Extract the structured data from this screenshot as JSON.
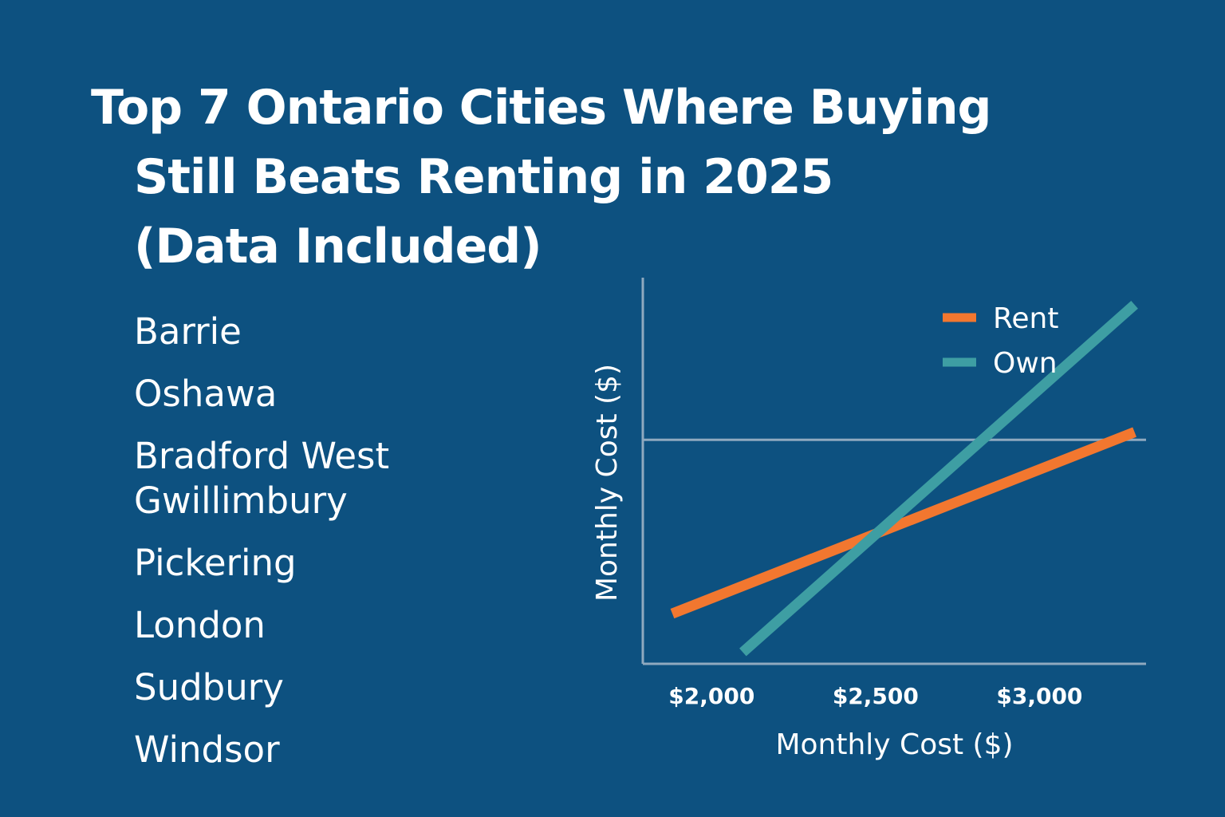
{
  "title": {
    "line1": "Top 7 Ontario Cities Where Buying",
    "line2": "Still Beats Renting in 2025",
    "line3": "(Data Included)"
  },
  "cities": [
    "Barrie",
    "Oshawa",
    "Bradford West Gwillimbury",
    "Pickering",
    "London",
    "Sudbury",
    "Windsor"
  ],
  "colors": {
    "background": "#0d5180",
    "rent": "#f2772f",
    "own": "#3e9ea3",
    "axis": "#8fa9bf"
  },
  "chart_data": {
    "type": "line",
    "xlabel": "Monthly Cost ($)",
    "ylabel": "Monthly Cost ($)",
    "xlim": [
      1790,
      3325
    ],
    "ylim": [
      0,
      100
    ],
    "x_ticks": [
      {
        "value": 2000,
        "label": "$2,000"
      },
      {
        "value": 2500,
        "label": "$2,500"
      },
      {
        "value": 3000,
        "label": "$3,000"
      }
    ],
    "reference_line_y": 58,
    "legend_position": "top-right",
    "series": [
      {
        "name": "Rent",
        "x": [
          1880,
          3290
        ],
        "y": [
          13,
          60
        ]
      },
      {
        "name": "Own",
        "x": [
          2095,
          3290
        ],
        "y": [
          3,
          93
        ]
      }
    ]
  }
}
